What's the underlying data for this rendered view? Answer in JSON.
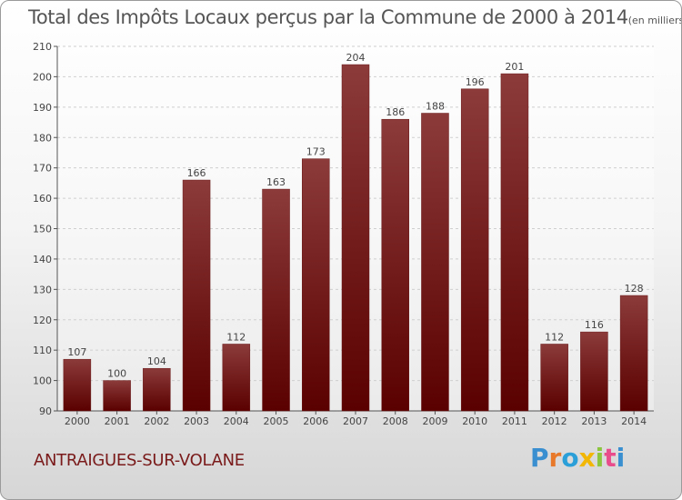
{
  "title": "Total des Impôts Locaux perçus par la Commune de 2000 à 2014",
  "title_unit": "(en milliers d'€)",
  "commune": "ANTRAIGUES-SUR-VOLANE",
  "logo": {
    "text": "Proxiti",
    "colors": [
      "#3a8fd0",
      "#e8792b",
      "#2b9fd8",
      "#f2b705",
      "#8cc63f",
      "#e84c8b",
      "#3a8fd0"
    ]
  },
  "colors": {
    "bar_top": "#8c3a3a",
    "bar_bottom": "#5a0000",
    "text": "#555555",
    "commune": "#7a1a1a"
  },
  "chart_data": {
    "type": "bar",
    "title": "Total des Impôts Locaux perçus par la Commune de 2000 à 2014",
    "xlabel": "",
    "ylabel": "",
    "categories": [
      "2000",
      "2001",
      "2002",
      "2003",
      "2004",
      "2005",
      "2006",
      "2007",
      "2008",
      "2009",
      "2010",
      "2011",
      "2012",
      "2013",
      "2014"
    ],
    "values": [
      107,
      100,
      104,
      166,
      112,
      163,
      173,
      204,
      186,
      188,
      196,
      201,
      112,
      116,
      128
    ],
    "ylim": [
      90,
      210
    ],
    "yticks": [
      90,
      100,
      110,
      120,
      130,
      140,
      150,
      160,
      170,
      180,
      190,
      200,
      210
    ],
    "grid": true
  }
}
